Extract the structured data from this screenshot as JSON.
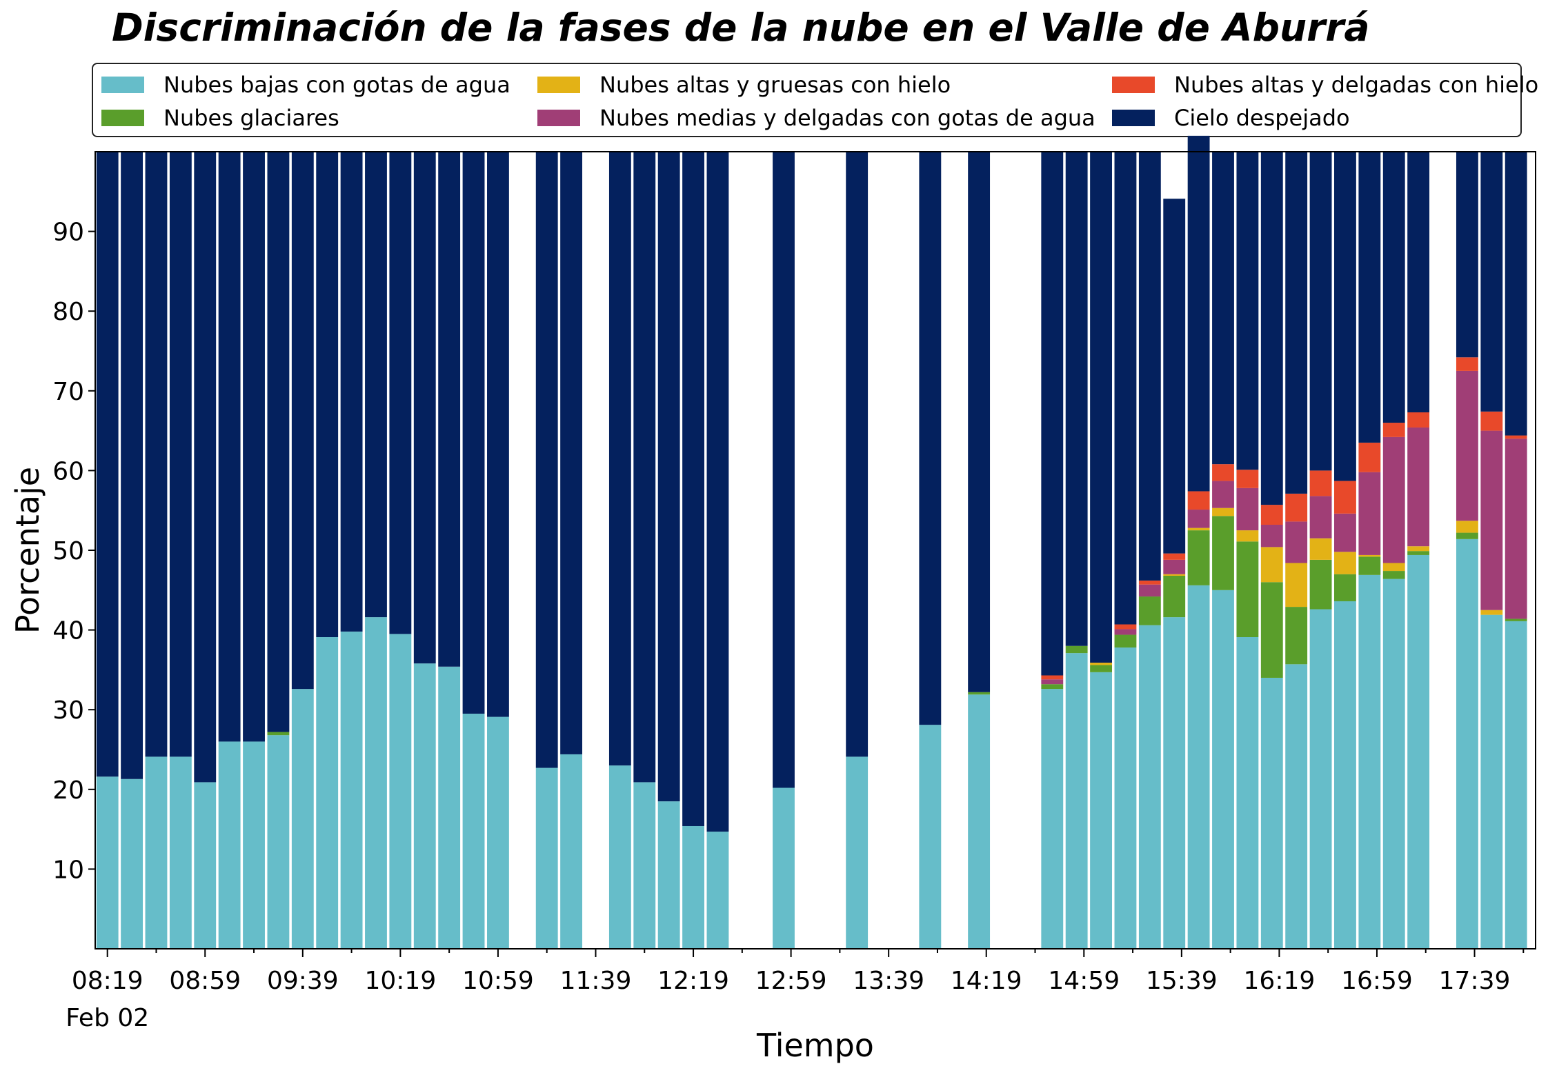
{
  "chart_data": {
    "type": "bar",
    "stacked": true,
    "title": "Discriminación de la fases de la nube en el Valle de Aburrá",
    "xlabel": "Tiempo",
    "ylabel": "Porcentaje",
    "ylim": [
      0,
      100
    ],
    "yticks": [
      10,
      20,
      30,
      40,
      50,
      60,
      70,
      80,
      90
    ],
    "xtick_labels": [
      "08:19",
      "08:59",
      "09:39",
      "10:19",
      "10:59",
      "11:39",
      "12:19",
      "12:59",
      "13:39",
      "14:19",
      "14:59",
      "15:39",
      "16:19",
      "16:59",
      "17:39"
    ],
    "xtick_sublabel": "Feb 02",
    "grid": false,
    "legend_placement": "top, above plot, 3 columns",
    "slot_count": 59,
    "slot_minutes": 10,
    "slot_start": "08:19",
    "categories": [
      "08:19",
      "08:29",
      "08:39",
      "08:49",
      "08:59",
      "09:09",
      "09:19",
      "09:29",
      "09:39",
      "09:49",
      "09:59",
      "10:09",
      "10:19",
      "10:29",
      "10:39",
      "10:49",
      "10:59",
      "11:19",
      "11:29",
      "11:49",
      "11:59",
      "12:09",
      "12:19",
      "12:29",
      "12:51",
      "13:21",
      "13:51",
      "14:11",
      "14:41",
      "14:51",
      "15:01",
      "15:11",
      "15:21",
      "15:31",
      "15:41",
      "15:51",
      "16:01",
      "16:11",
      "16:21",
      "16:31",
      "16:41",
      "16:51",
      "17:01",
      "17:11",
      "17:31",
      "17:41",
      "17:51"
    ],
    "slots": [
      0,
      1,
      2,
      3,
      4,
      5,
      6,
      7,
      8,
      9,
      10,
      11,
      12,
      13,
      14,
      15,
      16,
      18,
      19,
      21,
      22,
      23,
      24,
      25,
      27.7,
      30.7,
      33.7,
      35.7,
      38.7,
      39.7,
      40.7,
      41.7,
      42.7,
      43.7,
      44.7,
      45.7,
      46.7,
      47.7,
      48.7,
      49.7,
      50.7,
      51.7,
      52.7,
      53.7,
      55.7,
      56.7,
      57.7
    ],
    "series": [
      {
        "name": "Nubes bajas con gotas de agua",
        "color": "#66bdc9",
        "values": [
          21.6,
          21.3,
          24.1,
          24.1,
          20.9,
          26.0,
          26.0,
          26.8,
          32.6,
          39.1,
          39.8,
          41.6,
          39.5,
          35.8,
          35.4,
          29.5,
          29.1,
          22.7,
          24.4,
          23.0,
          20.9,
          18.5,
          15.4,
          14.7,
          20.2,
          24.1,
          28.1,
          31.9,
          32.6,
          37.1,
          34.7,
          37.8,
          40.6,
          41.6,
          45.6,
          45.0,
          39.1,
          34.0,
          35.7,
          42.6,
          43.6,
          46.9,
          46.4,
          49.4,
          51.4,
          41.9,
          41.1
        ]
      },
      {
        "name": "Nubes glaciares",
        "color": "#5a9e2b",
        "values": [
          0,
          0,
          0,
          0,
          0,
          0,
          0,
          0.4,
          0,
          0,
          0,
          0,
          0,
          0,
          0,
          0,
          0,
          0,
          0,
          0,
          0,
          0,
          0,
          0,
          0,
          0,
          0,
          0.3,
          0.6,
          0.9,
          0.9,
          1.6,
          3.6,
          5.2,
          6.9,
          9.3,
          12.0,
          12.0,
          7.2,
          6.2,
          3.4,
          2.3,
          1.0,
          0.5,
          0.8,
          0,
          0.3
        ]
      },
      {
        "name": "Nubes altas y gruesas con hielo",
        "color": "#e3b216",
        "values": [
          0,
          0,
          0,
          0,
          0,
          0,
          0,
          0,
          0,
          0,
          0,
          0,
          0,
          0,
          0,
          0,
          0,
          0,
          0,
          0,
          0,
          0,
          0,
          0,
          0,
          0,
          0,
          0,
          0,
          0,
          0.3,
          0,
          0,
          0.2,
          0.3,
          1.0,
          1.4,
          4.4,
          5.5,
          2.7,
          2.8,
          0.2,
          1.0,
          0.6,
          1.5,
          0.6,
          0
        ]
      },
      {
        "name": "Nubes medias y delgadas con gotas de agua",
        "color": "#a03e76",
        "values": [
          0,
          0,
          0,
          0,
          0,
          0,
          0,
          0,
          0,
          0,
          0,
          0,
          0,
          0,
          0,
          0,
          0,
          0,
          0,
          0,
          0,
          0,
          0,
          0,
          0,
          0,
          0,
          0,
          0.6,
          0,
          0,
          0.7,
          1.5,
          1.8,
          2.3,
          3.4,
          5.3,
          2.8,
          5.2,
          5.3,
          4.8,
          10.4,
          15.8,
          14.9,
          18.8,
          22.5,
          22.6
        ]
      },
      {
        "name": "Nubes altas y delgadas con hielo",
        "color": "#e8492a",
        "values": [
          0,
          0,
          0,
          0,
          0,
          0,
          0,
          0,
          0,
          0,
          0,
          0,
          0,
          0,
          0,
          0,
          0,
          0,
          0,
          0,
          0,
          0,
          0,
          0,
          0,
          0,
          0,
          0,
          0.5,
          0,
          0,
          0.6,
          0.5,
          0.8,
          2.3,
          2.1,
          2.3,
          2.5,
          3.5,
          3.2,
          4.1,
          3.7,
          1.8,
          1.9,
          1.7,
          2.4,
          0.4
        ]
      },
      {
        "name": "Cielo despejado",
        "color": "#04215e",
        "values": [
          78.4,
          78.7,
          75.9,
          75.9,
          79.1,
          74.0,
          74.0,
          72.8,
          67.4,
          60.9,
          60.2,
          58.4,
          60.5,
          64.2,
          64.6,
          70.5,
          70.9,
          77.3,
          75.6,
          77.0,
          79.1,
          81.5,
          84.6,
          85.3,
          79.8,
          75.9,
          71.9,
          67.8,
          65.7,
          62.0,
          64.1,
          59.3,
          53.8,
          44.5,
          44.6,
          39.2,
          39.9,
          44.3,
          42.9,
          40.0,
          41.3,
          36.5,
          34.0,
          32.7,
          25.8,
          32.6,
          35.6
        ]
      }
    ]
  }
}
